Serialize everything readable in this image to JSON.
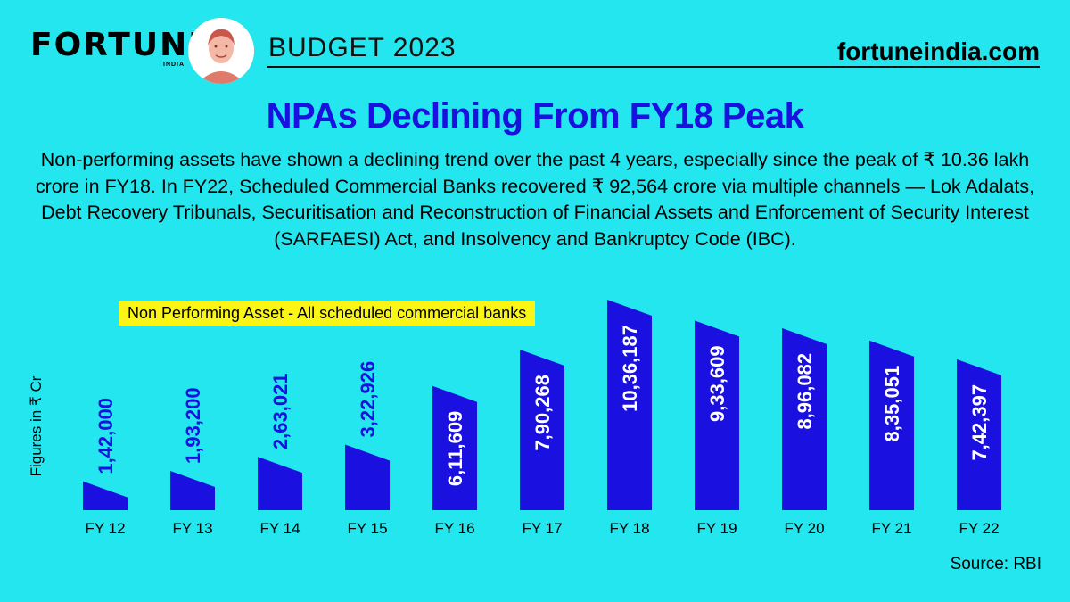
{
  "header": {
    "brand": "FORTUNE",
    "brand_sub": "INDIA",
    "edition": "BUDGET 2023",
    "site": "fortuneindia.com"
  },
  "title": "NPAs Declining From FY18  Peak",
  "description": "Non-performing assets have shown a declining trend over the past 4 years, especially since the peak of ₹ 10.36 lakh crore in FY18. In FY22, Scheduled Commercial Banks recovered ₹ 92,564 crore via multiple channels — Lok Adalats, Debt Recovery Tribunals, Securitisation and Reconstruction of Financial Assets and Enforcement of Security Interest (SARFAESI) Act, and Insolvency and Bankruptcy Code (IBC).",
  "source": "Source: RBI",
  "colors": {
    "background": "#24e6ee",
    "bar": "#1a10e0",
    "title": "#1a10e0",
    "highlight": "#fbf515"
  },
  "chart_data": {
    "type": "bar",
    "title": "Non Performing Asset - All scheduled commercial banks",
    "ylabel": "Figures in ₹ Cr",
    "xlabel": "",
    "categories": [
      "FY 12",
      "FY 13",
      "FY 14",
      "FY 15",
      "FY 16",
      "FY 17",
      "FY 18",
      "FY 19",
      "FY 20",
      "FY 21",
      "FY 22"
    ],
    "values": [
      142000,
      193200,
      263021,
      322926,
      611609,
      790268,
      1036187,
      933609,
      896082,
      835051,
      742397
    ],
    "value_labels": [
      "1,42,000",
      "1,93,200",
      "2,63,021",
      "3,22,926",
      "6,11,609",
      "7,90,268",
      "10,36,187",
      "9,33,609",
      "8,96,082",
      "8,35,051",
      "7,42,397"
    ],
    "ylim": [
      0,
      1036187
    ],
    "grid": false,
    "legend": "none"
  }
}
